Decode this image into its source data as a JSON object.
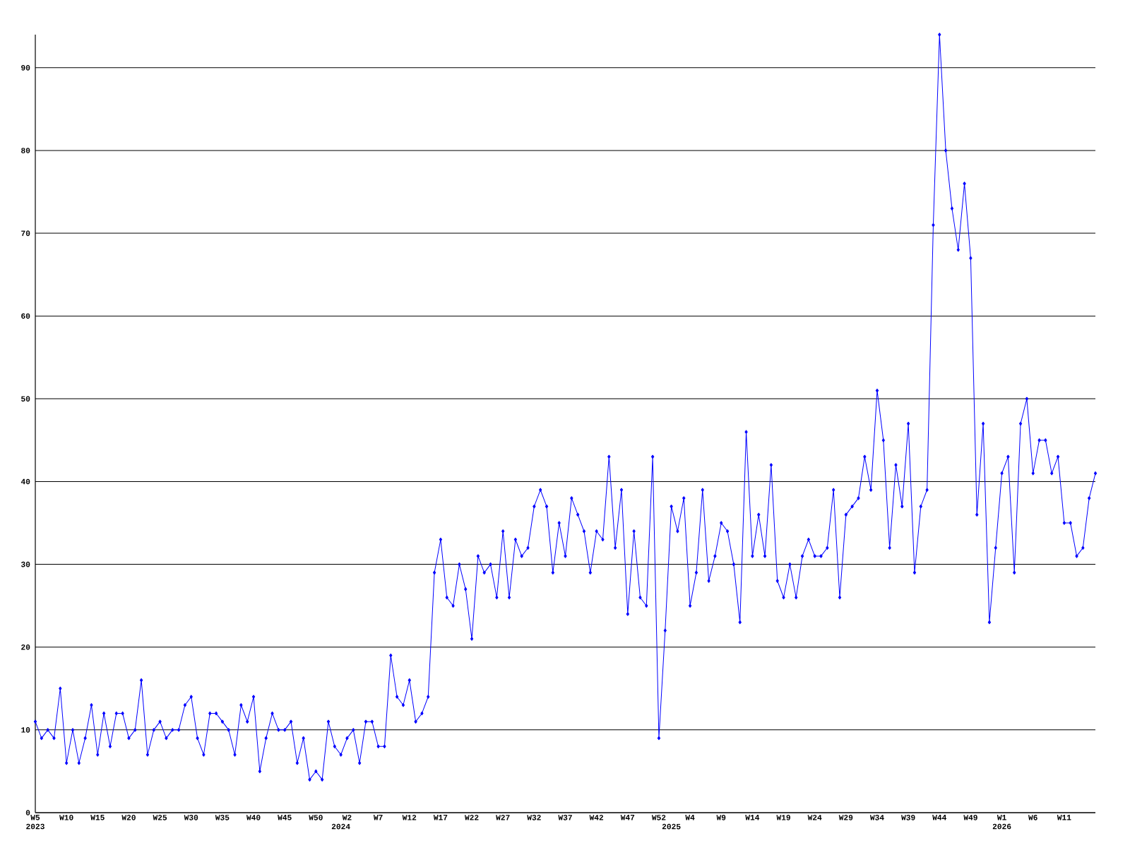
{
  "chart_data": {
    "type": "line",
    "color": "#0000ff",
    "marker": "diamond",
    "grid": "y",
    "categories": [
      "W5 2023",
      null,
      null,
      null,
      null,
      "W10",
      null,
      null,
      null,
      null,
      "W15",
      null,
      null,
      null,
      null,
      "W20",
      null,
      null,
      null,
      null,
      "W25",
      null,
      null,
      null,
      null,
      "W30",
      null,
      null,
      null,
      null,
      "W35",
      null,
      null,
      null,
      null,
      "W40",
      null,
      null,
      null,
      null,
      "W45",
      null,
      null,
      null,
      null,
      "W50",
      null,
      null,
      null,
      "2024",
      "W2",
      null,
      null,
      null,
      null,
      "W7",
      null,
      null,
      null,
      null,
      "W12",
      null,
      null,
      null,
      null,
      "W17",
      null,
      null,
      null,
      null,
      "W22",
      null,
      null,
      null,
      null,
      "W27",
      null,
      null,
      null,
      null,
      "W32",
      null,
      null,
      null,
      null,
      "W37",
      null,
      null,
      null,
      null,
      "W42",
      null,
      null,
      null,
      null,
      "W47",
      null,
      null,
      null,
      null,
      "W52",
      null,
      "2025",
      null,
      null,
      "W4",
      null,
      null,
      null,
      null,
      "W9",
      null,
      null,
      null,
      null,
      "W14",
      null,
      null,
      null,
      null,
      "W19",
      null,
      null,
      null,
      null,
      "W24",
      null,
      null,
      null,
      null,
      "W29",
      null,
      null,
      null,
      null,
      "W34",
      null,
      null,
      null,
      null,
      "W39",
      null,
      null,
      null,
      null,
      "W44",
      null,
      null,
      null,
      null,
      "W49",
      null,
      null,
      null,
      null,
      "W1 2026",
      null,
      null,
      null,
      null,
      "W6",
      null,
      null,
      null,
      null,
      "W11",
      null,
      null,
      null,
      null,
      null
    ],
    "values": [
      11,
      9,
      10,
      9,
      15,
      6,
      10,
      6,
      9,
      13,
      7,
      12,
      8,
      12,
      12,
      9,
      10,
      16,
      7,
      10,
      11,
      9,
      10,
      10,
      13,
      14,
      9,
      7,
      12,
      12,
      11,
      10,
      7,
      13,
      11,
      14,
      5,
      9,
      12,
      10,
      10,
      11,
      6,
      9,
      4,
      5,
      4,
      11,
      8,
      7,
      9,
      10,
      6,
      11,
      11,
      8,
      8,
      19,
      14,
      13,
      16,
      11,
      12,
      14,
      29,
      33,
      26,
      25,
      30,
      27,
      21,
      31,
      29,
      30,
      26,
      34,
      26,
      33,
      31,
      32,
      37,
      39,
      37,
      29,
      35,
      31,
      38,
      36,
      34,
      29,
      34,
      33,
      43,
      32,
      39,
      24,
      34,
      26,
      25,
      43,
      9,
      22,
      37,
      34,
      38,
      25,
      29,
      39,
      28,
      31,
      35,
      34,
      30,
      23,
      46,
      31,
      36,
      31,
      42,
      28,
      26,
      30,
      26,
      31,
      33,
      31,
      31,
      32,
      39,
      26,
      36,
      37,
      38,
      43,
      39,
      51,
      45,
      32,
      42,
      37,
      47,
      29,
      37,
      39,
      71,
      94,
      80,
      73,
      68,
      76,
      67,
      36,
      47,
      23,
      32,
      41,
      43,
      29,
      47,
      50,
      41,
      45,
      45,
      41,
      43,
      35,
      35,
      31,
      32,
      38,
      41
    ],
    "ylim": [
      0,
      94
    ],
    "yticks": [
      0,
      10,
      20,
      30,
      40,
      50,
      60,
      70,
      80,
      90
    ]
  }
}
